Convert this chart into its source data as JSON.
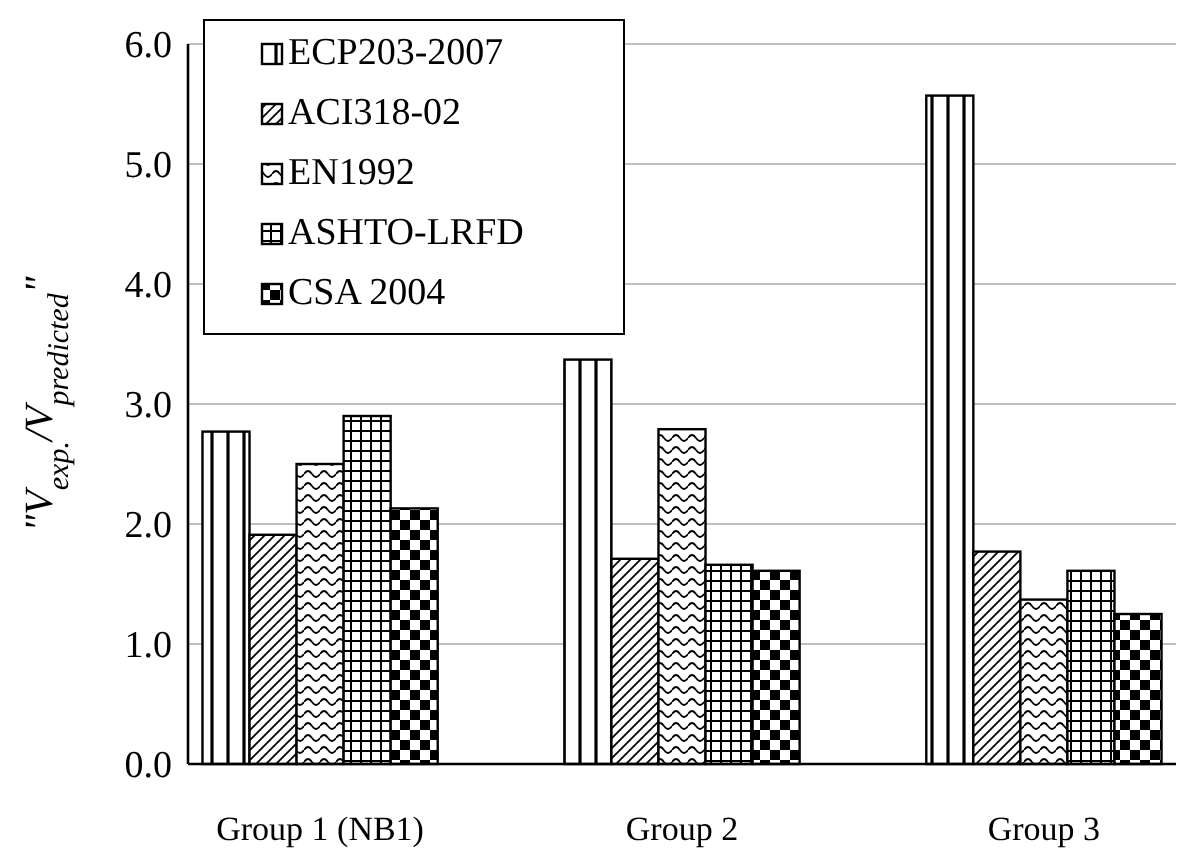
{
  "chart_data": {
    "type": "bar",
    "ylabel": "\"V$_{exp.}$/V$_{predicted}$\"",
    "categories": [
      "Group 1 (NB1)",
      "Group 2",
      "Group 3"
    ],
    "series": [
      {
        "name": "ECP203-2007",
        "color": "#000000",
        "values": [
          2.77,
          3.37,
          5.57
        ]
      },
      {
        "name": "ACI318-02",
        "color": "#000000",
        "values": [
          1.91,
          1.71,
          1.77
        ]
      },
      {
        "name": "EN1992",
        "color": "#000000",
        "values": [
          2.5,
          2.79,
          1.37
        ]
      },
      {
        "name": "ASHTO-LRFD",
        "color": "#000000",
        "values": [
          2.9,
          1.66,
          1.61
        ]
      },
      {
        "name": "CSA 2004",
        "color": "#000000",
        "values": [
          2.13,
          1.61,
          1.25
        ]
      }
    ],
    "ylim": [
      0,
      6
    ],
    "yticks": [
      {
        "value": 0,
        "label": "0.0"
      },
      {
        "value": 1,
        "label": "1.0"
      },
      {
        "value": 2,
        "label": "2.0"
      },
      {
        "value": 3,
        "label": "3.0"
      },
      {
        "value": 4,
        "label": "4.0"
      },
      {
        "value": 5,
        "label": "5.0"
      },
      {
        "value": 6,
        "label": "6.0"
      }
    ],
    "grid": "y",
    "legend": "top left"
  }
}
